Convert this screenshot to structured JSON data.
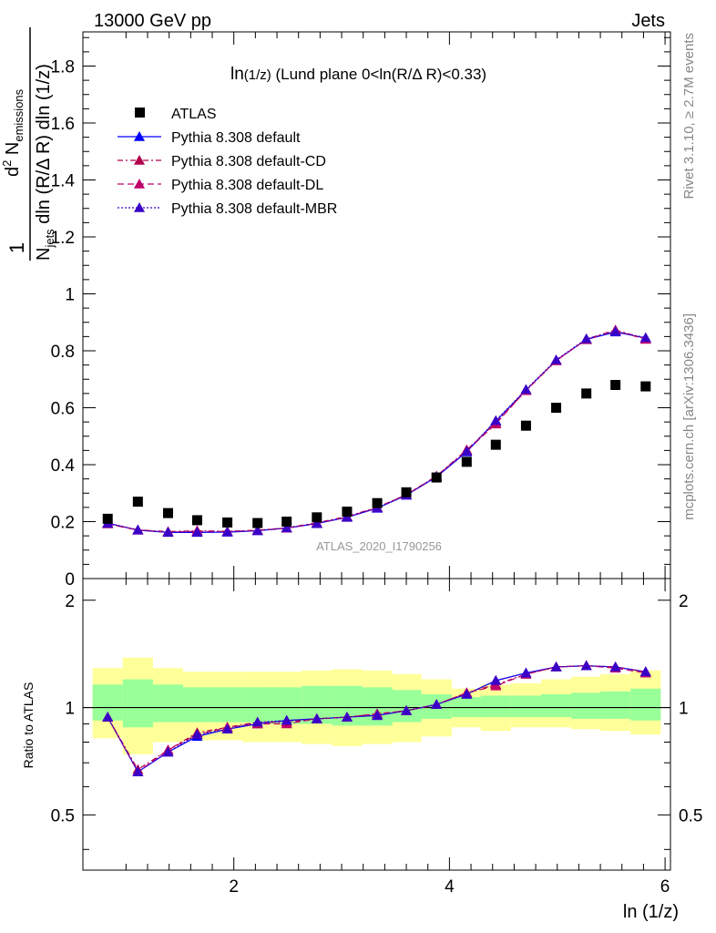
{
  "header": {
    "left": "13000 GeV pp",
    "right": "Jets"
  },
  "side_labels": {
    "rivet": "Rivet 3.1.10, ≥ 2.7M events",
    "mcplots": "mcplots.cern.ch [arXiv:1306.3436]"
  },
  "analysis_tag": "ATLAS_2020_I1790256",
  "colors": {
    "data": "#000000",
    "default": "#0000ff",
    "cd": "#b0004d",
    "dl": "#c0006a",
    "mbr": "#3a00c8",
    "band_outer": "#ffff99",
    "band_inner": "#99ff99"
  },
  "chart_data": [
    {
      "type": "scatter",
      "title_main": "ln",
      "title_paren": "(1/z)",
      "title_rest": " (Lund plane 0<ln(R/Δ R)<0.33)",
      "ylabel": {
        "prefix": "1",
        "num_d": "d",
        "num_2": "2",
        "num_N": " N",
        "num_sub": "emissions",
        "den_N": "N",
        "den_sub": "jets",
        "den_rest": " dln (R/Δ R) dln (1/z)"
      },
      "xlim": [
        0.6,
        6.05
      ],
      "ylim": [
        0,
        1.92
      ],
      "yticks": [
        0,
        0.2,
        0.4,
        0.6,
        0.8,
        1,
        1.2,
        1.4,
        1.6,
        1.8
      ],
      "ytick_labels": [
        "0",
        "0.2",
        "0.4",
        "0.6",
        "0.8",
        "1",
        "1.2",
        "1.4",
        "1.6",
        "1.8"
      ],
      "x": [
        0.83,
        1.11,
        1.39,
        1.66,
        1.94,
        2.22,
        2.49,
        2.77,
        3.05,
        3.33,
        3.6,
        3.88,
        4.16,
        4.43,
        4.71,
        4.99,
        5.27,
        5.54,
        5.82
      ],
      "legend": {
        "data": "ATLAS",
        "default": "Pythia 8.308 default",
        "cd": "Pythia 8.308 default-CD",
        "dl": "Pythia 8.308 default-DL",
        "mbr": "Pythia 8.308 default-MBR"
      },
      "data_values": [
        0.21,
        0.27,
        0.23,
        0.205,
        0.197,
        0.195,
        0.2,
        0.215,
        0.235,
        0.265,
        0.303,
        0.355,
        0.41,
        0.47,
        0.537,
        0.6,
        0.65,
        0.68,
        0.675
      ],
      "series": [
        {
          "key": "default",
          "name": "Pythia 8.308 default",
          "dash": "",
          "values": [
            0.195,
            0.17,
            0.162,
            0.162,
            0.163,
            0.168,
            0.177,
            0.193,
            0.215,
            0.247,
            0.293,
            0.357,
            0.445,
            0.553,
            0.662,
            0.766,
            0.84,
            0.866,
            0.845
          ]
        },
        {
          "key": "cd",
          "name": "Pythia 8.308 default-CD",
          "dash": "6,3,2,3",
          "values": [
            0.193,
            0.171,
            0.165,
            0.168,
            0.166,
            0.17,
            0.178,
            0.196,
            0.218,
            0.25,
            0.295,
            0.36,
            0.452,
            0.547,
            0.66,
            0.765,
            0.841,
            0.873,
            0.842
          ]
        },
        {
          "key": "dl",
          "name": "Pythia 8.308 default-DL",
          "dash": "7,4",
          "values": [
            0.192,
            0.17,
            0.163,
            0.166,
            0.165,
            0.169,
            0.177,
            0.194,
            0.216,
            0.249,
            0.294,
            0.359,
            0.449,
            0.543,
            0.661,
            0.766,
            0.839,
            0.871,
            0.84
          ]
        },
        {
          "key": "mbr",
          "name": "Pythia 8.308 default-MBR",
          "dash": "2,2",
          "values": [
            0.194,
            0.171,
            0.163,
            0.163,
            0.164,
            0.168,
            0.178,
            0.194,
            0.216,
            0.248,
            0.293,
            0.358,
            0.447,
            0.555,
            0.664,
            0.768,
            0.842,
            0.868,
            0.846
          ]
        }
      ]
    },
    {
      "type": "line",
      "ylabel": "Ratio to ATLAS",
      "xlabel": "ln (1/z)",
      "xlim": [
        0.6,
        6.05
      ],
      "ylim": [
        0.35,
        2.3
      ],
      "yticks": [
        0.5,
        1,
        2
      ],
      "ytick_labels": [
        "0.5",
        "1",
        "2"
      ],
      "xticks": [
        2,
        4,
        6
      ],
      "xtick_labels": [
        "2",
        "4",
        "6"
      ],
      "x": [
        0.83,
        1.11,
        1.39,
        1.66,
        1.94,
        2.22,
        2.49,
        2.77,
        3.05,
        3.33,
        3.6,
        3.88,
        4.16,
        4.43,
        4.71,
        4.99,
        5.27,
        5.54,
        5.82
      ],
      "reference": 1,
      "band_outer_lo": [
        0.82,
        0.74,
        0.8,
        0.81,
        0.81,
        0.8,
        0.8,
        0.79,
        0.78,
        0.79,
        0.8,
        0.83,
        0.88,
        0.86,
        0.88,
        0.88,
        0.87,
        0.86,
        0.84
      ],
      "band_outer_hi": [
        1.29,
        1.38,
        1.29,
        1.26,
        1.26,
        1.26,
        1.26,
        1.27,
        1.28,
        1.27,
        1.24,
        1.2,
        1.13,
        1.16,
        1.17,
        1.2,
        1.22,
        1.24,
        1.27
      ],
      "band_inner_lo": [
        0.92,
        0.88,
        0.91,
        0.91,
        0.91,
        0.91,
        0.9,
        0.9,
        0.89,
        0.89,
        0.91,
        0.93,
        0.94,
        0.94,
        0.94,
        0.94,
        0.93,
        0.93,
        0.92
      ],
      "band_inner_hi": [
        1.16,
        1.2,
        1.16,
        1.14,
        1.14,
        1.14,
        1.14,
        1.15,
        1.15,
        1.14,
        1.12,
        1.09,
        1.07,
        1.08,
        1.08,
        1.09,
        1.1,
        1.11,
        1.13
      ],
      "series": [
        {
          "key": "default",
          "name": "Pythia 8.308 default",
          "values": [
            0.94,
            0.66,
            0.75,
            0.83,
            0.87,
            0.9,
            0.92,
            0.93,
            0.94,
            0.95,
            0.98,
            1.02,
            1.09,
            1.19,
            1.25,
            1.3,
            1.31,
            1.3,
            1.26
          ]
        },
        {
          "key": "cd",
          "name": "Pythia 8.308 default-CD",
          "values": [
            0.94,
            0.67,
            0.76,
            0.85,
            0.88,
            0.91,
            0.91,
            0.93,
            0.94,
            0.96,
            0.98,
            1.02,
            1.1,
            1.16,
            1.24,
            1.3,
            1.31,
            1.3,
            1.26
          ]
        },
        {
          "key": "dl",
          "name": "Pythia 8.308 default-DL",
          "values": [
            0.94,
            0.66,
            0.76,
            0.84,
            0.88,
            0.9,
            0.9,
            0.93,
            0.94,
            0.96,
            0.98,
            1.02,
            1.1,
            1.15,
            1.24,
            1.3,
            1.31,
            1.29,
            1.25
          ]
        },
        {
          "key": "mbr",
          "name": "Pythia 8.308 default-MBR",
          "values": [
            0.94,
            0.66,
            0.75,
            0.84,
            0.87,
            0.91,
            0.92,
            0.93,
            0.94,
            0.95,
            0.98,
            1.02,
            1.09,
            1.19,
            1.25,
            1.3,
            1.31,
            1.3,
            1.26
          ]
        }
      ]
    }
  ]
}
